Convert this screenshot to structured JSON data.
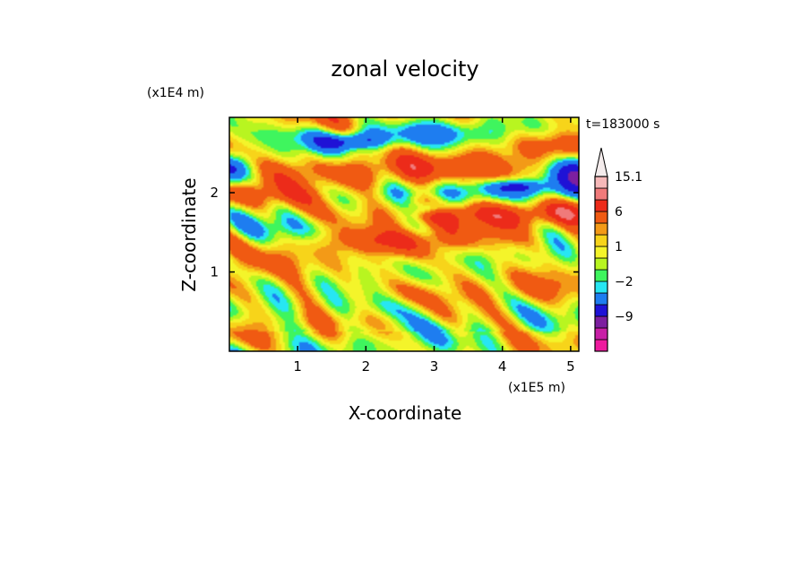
{
  "chart_data": {
    "type": "heatmap",
    "title": "zonal velocity",
    "xlabel": "X-coordinate",
    "ylabel": "Z-coordinate",
    "x_scale_label": "(x1E5 m)",
    "y_scale_label": "(x1E4 m)",
    "time_label": "t=183000 s",
    "xlim": [
      0,
      5.12
    ],
    "ylim": [
      0,
      2.95
    ],
    "x_ticks": [
      1,
      2,
      3,
      4,
      5
    ],
    "y_ticks": [
      1,
      2
    ],
    "colorbar": {
      "levels": [
        -15,
        -12,
        -9,
        -6,
        -3,
        -2,
        -1,
        0,
        1,
        2,
        3,
        6,
        9,
        12,
        15.1
      ],
      "colors": [
        "#ee1a9e",
        "#c81fa6",
        "#7d1fa0",
        "#1f12d6",
        "#1e7df0",
        "#27e6f2",
        "#3ff55e",
        "#b8f520",
        "#f4f42a",
        "#f7d41a",
        "#f39a17",
        "#f05a12",
        "#ec2b1a",
        "#f07a7a",
        "#f6b8b8",
        "#f4ecec"
      ],
      "tick_labels": [
        "15.1",
        "6",
        "1",
        "−2",
        "−9"
      ],
      "tick_values": [
        15.1,
        6,
        1,
        -2,
        -9
      ]
    },
    "features": [
      {
        "x": 0.0,
        "z": 2.3,
        "u": -8,
        "sx": 0.12,
        "sz": 0.12
      },
      {
        "x": 5.1,
        "z": 2.3,
        "u": -8,
        "sx": 0.14,
        "sz": 0.12
      },
      {
        "x": 1.8,
        "z": 2.65,
        "u": -7,
        "sx": 0.17,
        "sz": 0.07
      },
      {
        "x": 4.2,
        "z": 2.08,
        "u": -5,
        "sx": 0.12,
        "sz": 0.05
      },
      {
        "x": 2.95,
        "z": 1.8,
        "u": -6,
        "sx": 0.08,
        "sz": 0.05
      },
      {
        "x": 3.8,
        "z": 1.75,
        "u": 8,
        "sx": 0.8,
        "sz": 0.12
      },
      {
        "x": 2.2,
        "z": 2.27,
        "u": 6,
        "sx": 1.25,
        "sz": 0.16
      },
      {
        "x": 2.6,
        "z": 1.4,
        "u": 4,
        "sx": 0.5,
        "sz": 0.1
      },
      {
        "x": 0.25,
        "z": 1.98,
        "u": 5,
        "sx": 0.45,
        "sz": 0.1
      },
      {
        "x": 4.8,
        "z": 2.65,
        "u": 3,
        "sx": 0.35,
        "sz": 0.12
      },
      {
        "x": 2.9,
        "z": 2.05,
        "u": -2.5,
        "sx": 0.9,
        "sz": 0.12
      },
      {
        "x": 2.2,
        "z": 0.55,
        "u": -2.5,
        "sx": 0.5,
        "sz": 0.1
      },
      {
        "x": 4.9,
        "z": 2.0,
        "u": -2.5,
        "sx": 0.3,
        "sz": 0.1
      },
      {
        "x": 2.7,
        "z": 2.75,
        "u": -2.5,
        "sx": 1.0,
        "sz": 0.1
      }
    ]
  }
}
